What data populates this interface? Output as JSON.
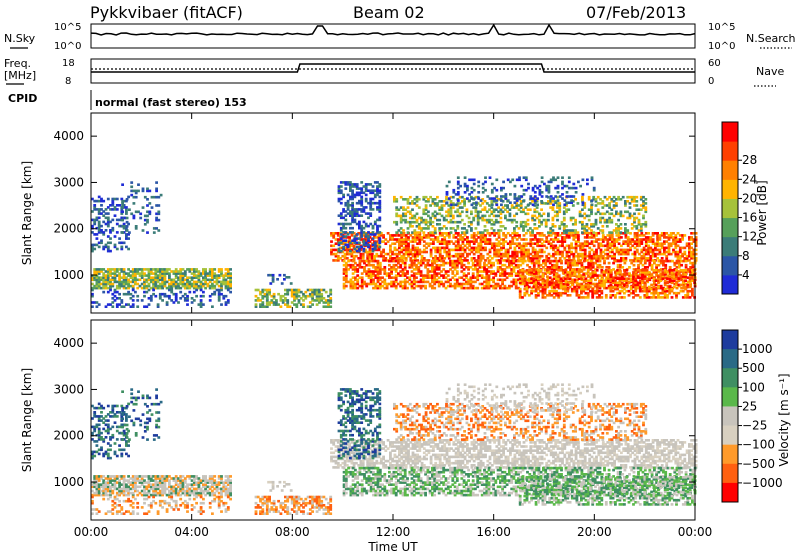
{
  "header": {
    "station": "Pykkvibaer (fitACF)",
    "beam": "Beam 02",
    "date": "07/Feb/2013"
  },
  "status_panels": {
    "nsky_label": "N.Sky",
    "nsearch_label": "N.Search",
    "nsky_ticks": [
      "10^5",
      "10^0"
    ],
    "nsearch_ticks": [
      "10^5",
      "10^0"
    ],
    "freq_label": "Freq.",
    "freq_unit": "[MHz]",
    "freq_ticks": [
      "18",
      "8"
    ],
    "nave_label": "Nave",
    "nave_ticks": [
      "60",
      "0"
    ],
    "cpid_label": "CPID",
    "cpid_text": "normal (fast stereo) 153"
  },
  "chart_data": [
    {
      "type": "heatmap",
      "name": "power",
      "ylabel": "Slant Range [km]",
      "xlabel": "",
      "ylim": [
        180,
        4500
      ],
      "xlim": [
        0,
        24
      ],
      "yticks": [
        "1000",
        "2000",
        "3000",
        "4000"
      ],
      "colorbar_label": "Power [dB]",
      "colorbar_ticks": [
        "4",
        "8",
        "12",
        "16",
        "20",
        "24",
        "28"
      ],
      "colorbar_colors": [
        "#1f2bd6",
        "#2b56a6",
        "#3b7c78",
        "#56a05a",
        "#a6c23a",
        "#ffb400",
        "#ff8000",
        "#ff4000",
        "#ff0000"
      ]
    },
    {
      "type": "heatmap",
      "name": "velocity",
      "ylabel": "Slant Range [km]",
      "xlabel": "Time UT",
      "ylim": [
        180,
        4500
      ],
      "xlim": [
        0,
        24
      ],
      "yticks": [
        "1000",
        "2000",
        "3000",
        "4000"
      ],
      "xticks": [
        "00:00",
        "04:00",
        "08:00",
        "12:00",
        "16:00",
        "20:00",
        "00:00"
      ],
      "colorbar_label": "Velocity [m s⁻¹]",
      "colorbar_ticks": [
        "1000",
        "500",
        "100",
        "25",
        "−25",
        "−100",
        "−500",
        "−1000"
      ],
      "colorbar_colors": [
        "#1e3c9e",
        "#2a6a86",
        "#3f8f62",
        "#5ab84a",
        "#c8c4bc",
        "#d8d0c0",
        "#ff9a2a",
        "#ff6010",
        "#ff0000"
      ]
    }
  ]
}
